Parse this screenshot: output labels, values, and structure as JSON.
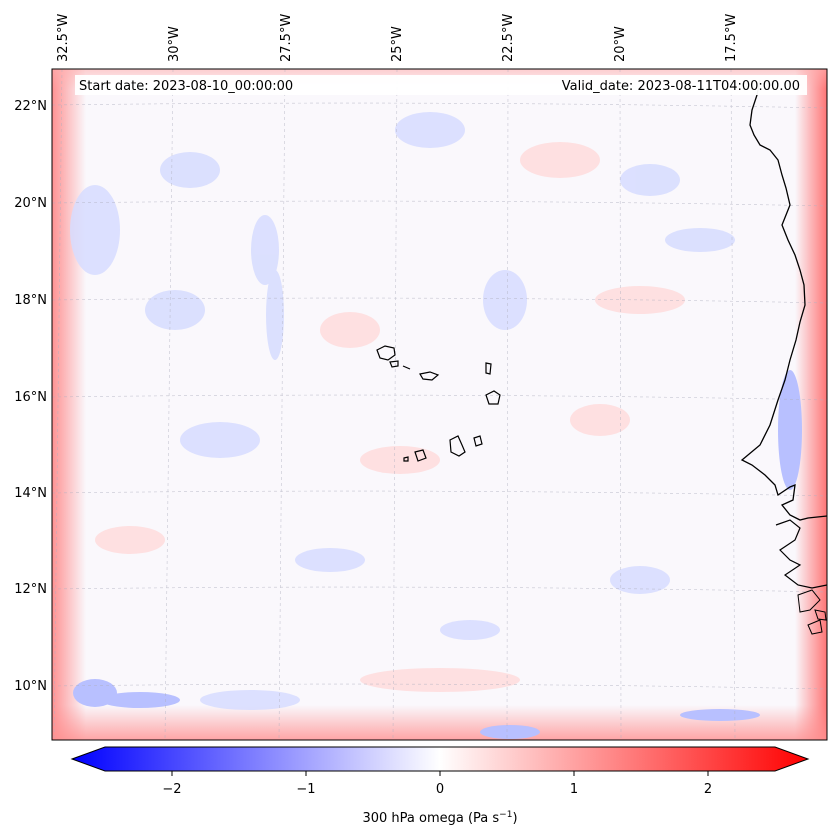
{
  "map": {
    "start_date_text": "Start date: 2023-08-10_00:00:00",
    "valid_date_text": "Valid_date: 2023-08-11T04:00:00.00",
    "lon_labels": [
      "32.5°W",
      "30°W",
      "27.5°W",
      "25°W",
      "22.5°W",
      "20°W",
      "17.5°W"
    ],
    "lat_labels": [
      "22°N",
      "20°N",
      "18°N",
      "16°N",
      "14°N",
      "12°N",
      "10°N"
    ],
    "field": "300 hPa omega",
    "colors": {
      "negative": "#0000ff",
      "neutral": "#ffffff",
      "positive": "#ff0000",
      "coastline": "#000000",
      "gridline": "#b0b0c0"
    }
  },
  "colorbar": {
    "ticks": [
      "−2",
      "−1",
      "0",
      "1",
      "2"
    ],
    "tick_values": [
      -2,
      -1,
      0,
      1,
      2
    ],
    "range": [
      -2.5,
      2.5
    ],
    "label_prefix": "300 hPa omega (Pa s",
    "label_exp": "−1",
    "label_suffix": ")"
  }
}
